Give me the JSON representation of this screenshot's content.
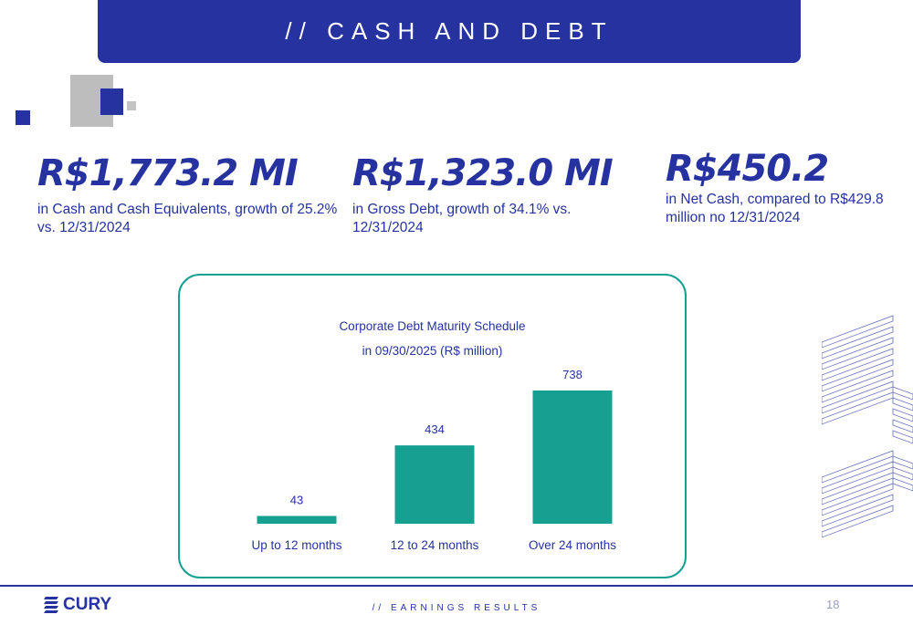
{
  "header": {
    "title": "// CASH AND DEBT"
  },
  "stats": [
    {
      "value": "R$1,773.2 MI",
      "description": "in Cash and Cash Equivalents, growth of 25.2% vs. 12/31/2024"
    },
    {
      "value": "R$1,323.0 MI",
      "description": "in Gross Debt, growth of 34.1% vs. 12/31/2024"
    },
    {
      "value": "R$450.2",
      "description": "in Net Cash, compared to R$429.8 million no 12/31/2024"
    }
  ],
  "chart_data": {
    "type": "bar",
    "title": "Corporate Debt Maturity Schedule",
    "subtitle": "in 09/30/2025 (R$ million)",
    "categories": [
      "Up to 12 months",
      "12 to 24 months",
      "Over 24 months"
    ],
    "values": [
      43,
      434,
      738
    ],
    "data_labels": [
      "43",
      "434",
      "738"
    ],
    "ylim": [
      0,
      800
    ],
    "grid": false,
    "color": "#16a092"
  },
  "footer": {
    "logo_text": "CURY",
    "section": "// EARNINGS RESULTS",
    "page_number": "18"
  },
  "colors": {
    "primary": "#2532a0",
    "accent": "#16a092",
    "gray": "#bdbdbd"
  }
}
